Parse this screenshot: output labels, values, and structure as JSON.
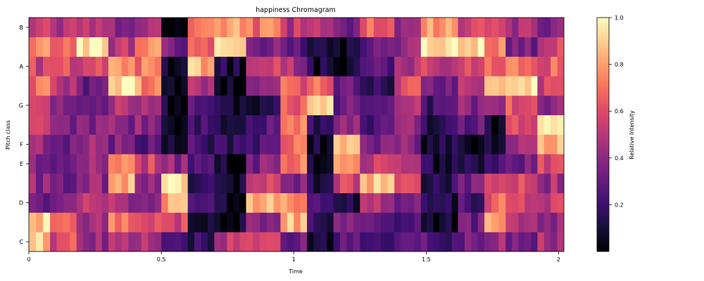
{
  "chart_data": {
    "type": "heatmap",
    "title": "happiness Chromagram",
    "xlabel": "Time",
    "ylabel": "Pitch class",
    "xlim": [
      0,
      2.02
    ],
    "x_ticks": [
      {
        "value": 0,
        "label": "0"
      },
      {
        "value": 0.5,
        "label": "0.5"
      },
      {
        "value": 1,
        "label": "1"
      },
      {
        "value": 1.5,
        "label": "1.5"
      },
      {
        "value": 2,
        "label": "2"
      }
    ],
    "rows": [
      "C",
      "C#",
      "D",
      "D#",
      "E",
      "F",
      "F#",
      "G",
      "G#",
      "A",
      "A#",
      "B"
    ],
    "y_tick_labels": [
      "C",
      "D",
      "E",
      "F",
      "G",
      "A",
      "B"
    ],
    "y_tick_rows": [
      0,
      2,
      4,
      5,
      7,
      9,
      11
    ],
    "colormap": "magma",
    "colorbar": {
      "label": "Relative Intensity",
      "range": [
        0,
        1
      ],
      "ticks": [
        {
          "value": 0.2,
          "label": "0.2"
        },
        {
          "value": 0.4,
          "label": "0.4"
        },
        {
          "value": 0.6,
          "label": "0.6"
        },
        {
          "value": 0.8,
          "label": "0.8"
        },
        {
          "value": 1.0,
          "label": "1.0"
        }
      ]
    },
    "segments": [
      {
        "t0": 0.0,
        "t1": 0.08,
        "values": [
          0.85,
          0.9,
          0.35,
          0.4,
          0.4,
          0.45,
          0.5,
          0.5,
          0.7,
          0.55,
          0.75,
          0.55
        ]
      },
      {
        "t0": 0.08,
        "t1": 0.18,
        "values": [
          0.6,
          0.7,
          0.4,
          0.3,
          0.3,
          0.35,
          0.35,
          0.4,
          0.5,
          0.6,
          0.7,
          0.5
        ]
      },
      {
        "t0": 0.18,
        "t1": 0.3,
        "values": [
          0.4,
          0.45,
          0.5,
          0.4,
          0.45,
          0.4,
          0.35,
          0.35,
          0.35,
          0.6,
          0.95,
          0.45
        ]
      },
      {
        "t0": 0.3,
        "t1": 0.4,
        "values": [
          0.5,
          0.7,
          0.45,
          0.85,
          0.7,
          0.35,
          0.4,
          0.45,
          0.95,
          0.8,
          0.5,
          0.4
        ]
      },
      {
        "t0": 0.4,
        "t1": 0.5,
        "values": [
          0.5,
          0.6,
          0.35,
          0.45,
          0.55,
          0.3,
          0.4,
          0.5,
          0.75,
          0.7,
          0.75,
          0.5
        ]
      },
      {
        "t0": 0.5,
        "t1": 0.6,
        "values": [
          0.15,
          0.6,
          0.8,
          0.9,
          0.4,
          0.05,
          0.05,
          0.05,
          0.05,
          0.1,
          0.35,
          0.05
        ]
      },
      {
        "t0": 0.6,
        "t1": 0.7,
        "values": [
          0.2,
          0.15,
          0.3,
          0.15,
          0.2,
          0.2,
          0.25,
          0.3,
          0.45,
          0.85,
          0.6,
          0.65
        ]
      },
      {
        "t0": 0.7,
        "t1": 0.82,
        "values": [
          0.5,
          0.04,
          0.04,
          0.04,
          0.04,
          0.2,
          0.15,
          0.1,
          0.05,
          0.1,
          0.9,
          0.8
        ]
      },
      {
        "t0": 0.82,
        "t1": 0.95,
        "values": [
          0.5,
          0.4,
          0.85,
          0.6,
          0.35,
          0.25,
          0.3,
          0.15,
          0.35,
          0.6,
          0.35,
          0.7
        ]
      },
      {
        "t0": 0.95,
        "t1": 1.05,
        "values": [
          0.3,
          0.85,
          0.75,
          0.4,
          0.75,
          0.7,
          0.75,
          0.65,
          0.65,
          0.45,
          0.3,
          0.5
        ]
      },
      {
        "t0": 1.05,
        "t1": 1.15,
        "values": [
          0.1,
          0.15,
          0.3,
          0.1,
          0.05,
          0.05,
          0.2,
          0.95,
          0.7,
          0.1,
          0.05,
          0.5
        ]
      },
      {
        "t0": 1.15,
        "t1": 1.25,
        "values": [
          0.3,
          0.35,
          0.15,
          0.55,
          0.85,
          0.9,
          0.4,
          0.3,
          0.3,
          0.05,
          0.05,
          0.3
        ]
      },
      {
        "t0": 1.25,
        "t1": 1.38,
        "values": [
          0.25,
          0.35,
          0.5,
          0.85,
          0.55,
          0.35,
          0.25,
          0.3,
          0.15,
          0.3,
          0.3,
          0.7
        ]
      },
      {
        "t0": 1.38,
        "t1": 1.48,
        "values": [
          0.3,
          0.25,
          0.3,
          0.6,
          0.5,
          0.4,
          0.45,
          0.55,
          0.6,
          0.5,
          0.4,
          0.35
        ]
      },
      {
        "t0": 1.48,
        "t1": 1.62,
        "values": [
          0.25,
          0.05,
          0.1,
          0.15,
          0.1,
          0.1,
          0.15,
          0.2,
          0.35,
          0.55,
          0.97,
          0.8
        ]
      },
      {
        "t0": 1.62,
        "t1": 1.72,
        "values": [
          0.35,
          0.3,
          0.25,
          0.35,
          0.1,
          0.05,
          0.3,
          0.4,
          0.5,
          0.6,
          0.95,
          0.55
        ]
      },
      {
        "t0": 1.72,
        "t1": 1.8,
        "values": [
          0.45,
          0.75,
          0.65,
          0.5,
          0.2,
          0.1,
          0.1,
          0.45,
          0.85,
          0.65,
          0.75,
          0.55
        ]
      },
      {
        "t0": 1.8,
        "t1": 1.92,
        "values": [
          0.35,
          0.45,
          0.6,
          0.55,
          0.35,
          0.4,
          0.55,
          0.6,
          0.95,
          0.7,
          0.35,
          0.45
        ]
      },
      {
        "t0": 1.92,
        "t1": 2.02,
        "values": [
          0.45,
          0.4,
          0.55,
          0.45,
          0.6,
          0.85,
          0.9,
          0.4,
          0.55,
          0.65,
          0.55,
          0.4
        ]
      }
    ]
  }
}
